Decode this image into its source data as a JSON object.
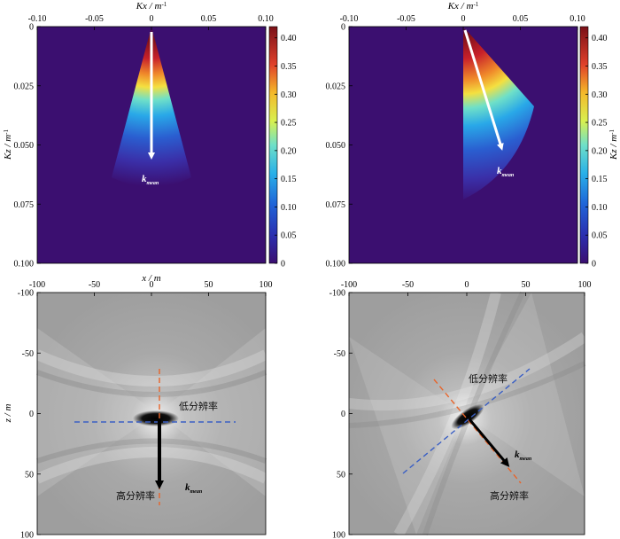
{
  "chart_data": [
    {
      "type": "heatmap",
      "panel": "top-left",
      "xlabel": "Kx / m⁻¹",
      "ylabel": "Kz / m⁻¹",
      "x_ticks": [
        -0.1,
        -0.05,
        0,
        0.05,
        0.1
      ],
      "x_tick_labels": [
        "-0.10",
        "-0.05",
        "0",
        "0.05",
        "0.10"
      ],
      "y_ticks": [
        0,
        0.025,
        0.05,
        0.075,
        0.1
      ],
      "y_tick_labels": [
        "0",
        "0.025",
        "0.050",
        "0.075",
        "0.100"
      ],
      "xlim": [
        -0.1,
        0.1
      ],
      "ylim": [
        0,
        0.1
      ],
      "colorbar": {
        "min": 0,
        "max": 0.42,
        "ticks": [
          "0.40",
          "0.35",
          "0.30",
          "0.25",
          "0.20",
          "0.15",
          "0.10",
          "0.05",
          "0"
        ]
      },
      "wedge": {
        "apex": [
          0,
          0
        ],
        "direction_deg": 0,
        "half_angle_deg": 13,
        "max_radius": 0.068
      },
      "arrow": {
        "from": [
          0,
          0.003
        ],
        "to": [
          0,
          0.057
        ]
      },
      "annotation": {
        "text": "k",
        "subscript": "mean",
        "pos": [
          -0.008,
          0.066
        ]
      }
    },
    {
      "type": "heatmap",
      "panel": "top-right",
      "xlabel": "Kx / m⁻¹",
      "ylabel": "Kz / m⁻¹",
      "x_ticks": [
        -0.1,
        -0.05,
        0,
        0.05,
        0.1
      ],
      "x_tick_labels": [
        "-0.10",
        "-0.05",
        "0",
        "0.05",
        "0.10"
      ],
      "y_ticks": [
        0,
        0.025,
        0.05,
        0.075,
        0.1
      ],
      "y_tick_labels": [
        "0",
        "0.025",
        "0.050",
        "0.075",
        "0.100"
      ],
      "xlim": [
        -0.1,
        0.1
      ],
      "ylim": [
        0,
        0.1
      ],
      "colorbar": {
        "min": 0,
        "max": 0.42,
        "ticks": [
          "0.40",
          "0.35",
          "0.30",
          "0.25",
          "0.20",
          "0.15",
          "0.10",
          "0.05",
          "0"
        ]
      },
      "wedge": {
        "apex": [
          0,
          0
        ],
        "direction_deg": 22,
        "half_angle_deg": 24,
        "max_radius": 0.08,
        "clip_kx_min": 0
      },
      "arrow": {
        "from": [
          0.002,
          0.002
        ],
        "to": [
          0.037,
          0.054
        ]
      },
      "annotation": {
        "text": "k",
        "subscript": "mean",
        "pos": [
          0.033,
          0.062
        ]
      }
    },
    {
      "type": "heatmap",
      "panel": "bottom-left",
      "xlabel": "x / m",
      "ylabel": "z / m",
      "x_ticks": [
        -100,
        -50,
        0,
        50,
        100
      ],
      "x_tick_labels": [
        "-100",
        "-50",
        "0",
        "50",
        "100"
      ],
      "y_ticks": [
        -100,
        -50,
        0,
        50,
        100
      ],
      "y_tick_labels": [
        "-100",
        "-50",
        "0",
        "50",
        "100"
      ],
      "xlim": [
        -100,
        100
      ],
      "ylim": [
        -100,
        100
      ],
      "blue_line": {
        "from": [
          -65,
          7
        ],
        "to": [
          70,
          7
        ]
      },
      "orange_line": {
        "from": [
          7,
          -37
        ],
        "to": [
          7,
          78
        ]
      },
      "arrow": {
        "from": [
          7,
          5
        ],
        "to": [
          7,
          66
        ]
      },
      "labels": [
        {
          "text": "低分辨率",
          "pos": [
            24,
            -5
          ]
        },
        {
          "text": "高分辨率",
          "pos": [
            -33,
            72
          ]
        }
      ],
      "kmean": {
        "text": "k",
        "subscript": "mean",
        "pos": [
          27,
          62
        ]
      }
    },
    {
      "type": "heatmap",
      "panel": "bottom-right",
      "xlabel": "x / m",
      "ylabel": "z / m",
      "x_ticks": [
        -100,
        -50,
        0,
        50,
        100
      ],
      "x_tick_labels": [
        "-100",
        "-50",
        "0",
        "50",
        "100"
      ],
      "y_ticks": [
        -100,
        -50,
        0,
        50,
        100
      ],
      "y_tick_labels": [
        "-100",
        "-50",
        "0",
        "50",
        "100"
      ],
      "xlim": [
        -100,
        100
      ],
      "ylim": [
        -100,
        100
      ],
      "blue_line": {
        "from": [
          -50,
          50
        ],
        "to": [
          58,
          -37
        ]
      },
      "orange_line": {
        "from": [
          -22,
          -25
        ],
        "to": [
          50,
          57
        ]
      },
      "arrow": {
        "from": [
          8,
          5
        ],
        "to": [
          43,
          47
        ]
      },
      "labels": [
        {
          "text": "低分辨率",
          "pos": [
            5,
            -27
          ]
        },
        {
          "text": "高分辨率",
          "pos": [
            28,
            71
          ]
        }
      ],
      "kmean": {
        "text": "k",
        "subscript": "mean",
        "pos": [
          46,
          35
        ]
      }
    }
  ]
}
